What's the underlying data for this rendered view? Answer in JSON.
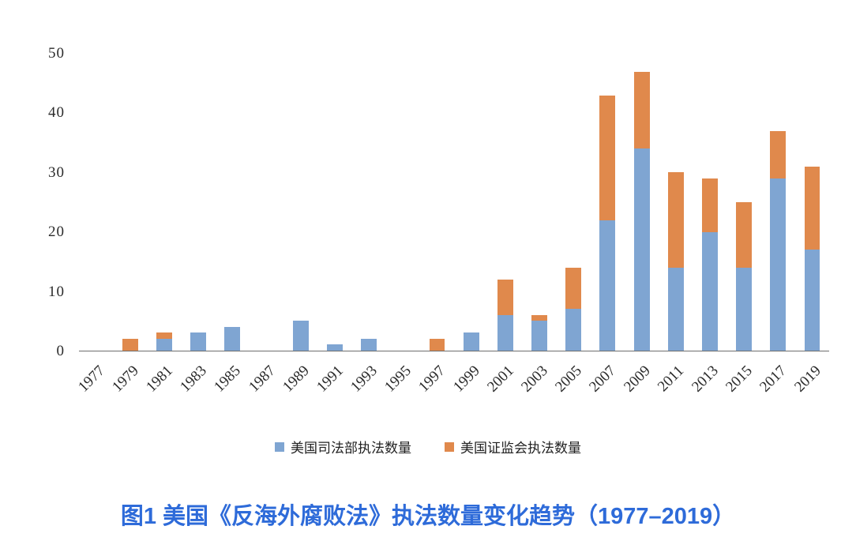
{
  "chart_data": {
    "type": "bar",
    "stacked": true,
    "categories": [
      "1977",
      "1979",
      "1981",
      "1983",
      "1985",
      "1987",
      "1989",
      "1991",
      "1993",
      "1995",
      "1997",
      "1999",
      "2001",
      "2003",
      "2005",
      "2007",
      "2009",
      "2011",
      "2013",
      "2015",
      "2017",
      "2019"
    ],
    "series": [
      {
        "key": "doj",
        "name": "美国司法部执法数量",
        "color": "#7FA5D2",
        "values": [
          0,
          0,
          2,
          3,
          4,
          0,
          5,
          1,
          2,
          0,
          0,
          3,
          6,
          5,
          7,
          22,
          34,
          14,
          20,
          14,
          29,
          17
        ]
      },
      {
        "key": "sec",
        "name": "美国证监会执法数量",
        "color": "#E0894C",
        "values": [
          0,
          2,
          1,
          0,
          0,
          0,
          0,
          0,
          0,
          0,
          2,
          0,
          6,
          1,
          7,
          21,
          13,
          16,
          9,
          11,
          8,
          14
        ]
      }
    ],
    "ylim": [
      0,
      50
    ],
    "yticks": [
      0,
      10,
      20,
      30,
      40,
      50
    ],
    "xlabel": "",
    "ylabel": "",
    "grid": false,
    "legend_position": "bottom"
  },
  "caption": "图1 美国《反海外腐败法》执法数量变化趋势（1977–2019）",
  "colors": {
    "caption_text": "#2E6BD9",
    "axis_line": "#6E6E6E",
    "doj_bar": "#7FA5D2",
    "sec_bar": "#E0894C"
  }
}
